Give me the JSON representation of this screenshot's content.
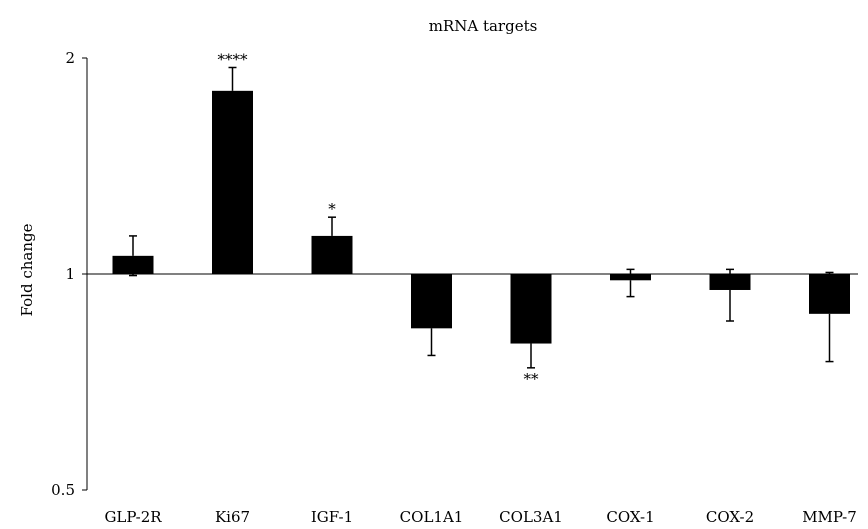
{
  "chart_data": {
    "type": "bar",
    "title": "mRNA targets",
    "xlabel": "",
    "ylabel": "Fold change",
    "yscale": "log2",
    "ylim": [
      0.5,
      2
    ],
    "yticks": [
      "0.5",
      "1",
      "2"
    ],
    "baseline": 1,
    "grid": false,
    "legend": "none",
    "bar_color": "#000000",
    "categories": [
      "GLP-2R",
      "Ki67",
      "IGF-1",
      "COL1A1",
      "COL3A1",
      "COX-1",
      "COX-2",
      "MMP-7"
    ],
    "values": [
      1.06,
      1.8,
      1.13,
      0.84,
      0.8,
      0.98,
      0.95,
      0.88
    ],
    "error_bars": [
      {
        "value": 1.06,
        "bar_top": 1.13,
        "bar_bottom": 0.995
      },
      {
        "value": 1.8,
        "bar_top": 1.94
      },
      {
        "value": 1.13,
        "bar_top": 1.2
      },
      {
        "value": 0.84,
        "bar_bottom": 0.77
      },
      {
        "value": 0.8,
        "bar_bottom": 0.74
      },
      {
        "value": 0.98,
        "bar_top": 1.015,
        "bar_bottom": 0.93
      },
      {
        "value": 0.95,
        "bar_top": 1.015,
        "bar_bottom": 0.86
      },
      {
        "value": 0.88,
        "bar_top": 1.005,
        "bar_bottom": 0.755
      }
    ],
    "significance": [
      "",
      "****",
      "*",
      "",
      "**",
      "",
      "",
      ""
    ]
  }
}
